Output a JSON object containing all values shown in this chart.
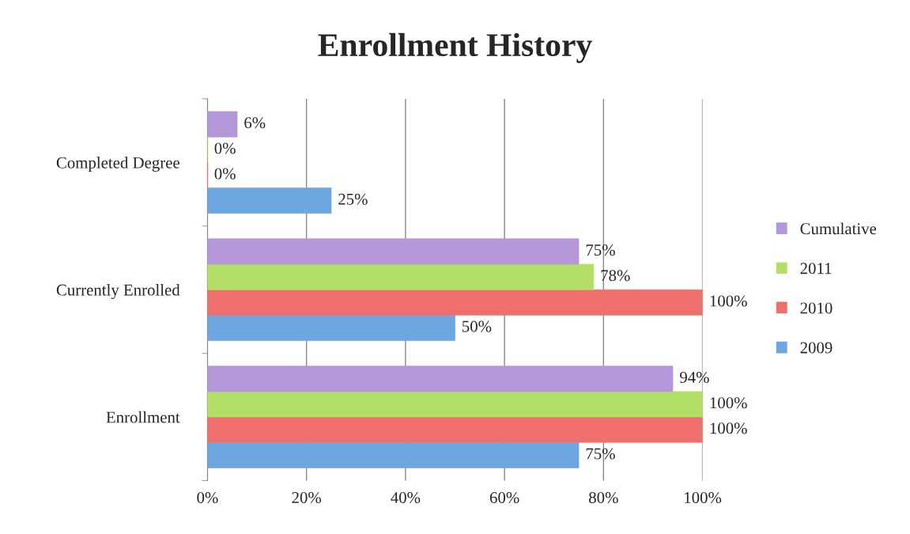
{
  "chart_data": {
    "type": "bar",
    "orientation": "horizontal",
    "title": "Enrollment History",
    "categories": [
      "Completed Degree",
      "Currently Enrolled",
      "Enrollment"
    ],
    "series": [
      {
        "name": "2009",
        "color": "#6ea6e2",
        "values": [
          25,
          50,
          75
        ],
        "value_labels": [
          "25%",
          "50%",
          "75%"
        ]
      },
      {
        "name": "2010",
        "color": "#ee6f6b",
        "values": [
          0,
          100,
          100
        ],
        "value_labels": [
          "0%",
          "100%",
          "100%"
        ]
      },
      {
        "name": "2011",
        "color": "#b4df66",
        "values": [
          0,
          78,
          100
        ],
        "value_labels": [
          "0%",
          "78%",
          "100%"
        ]
      },
      {
        "name": "Cumulative",
        "color": "#b497d8",
        "values": [
          6,
          75,
          94
        ],
        "value_labels": [
          "6%",
          "75%",
          "94%"
        ]
      }
    ],
    "xlim": [
      0,
      100
    ],
    "xticks": [
      {
        "value": 0,
        "label": "0%"
      },
      {
        "value": 20,
        "label": "20%"
      },
      {
        "value": 40,
        "label": "40%"
      },
      {
        "value": 60,
        "label": "60%"
      },
      {
        "value": 80,
        "label": "80%"
      },
      {
        "value": 100,
        "label": "100%"
      }
    ],
    "grid": "x",
    "legend": "right"
  }
}
